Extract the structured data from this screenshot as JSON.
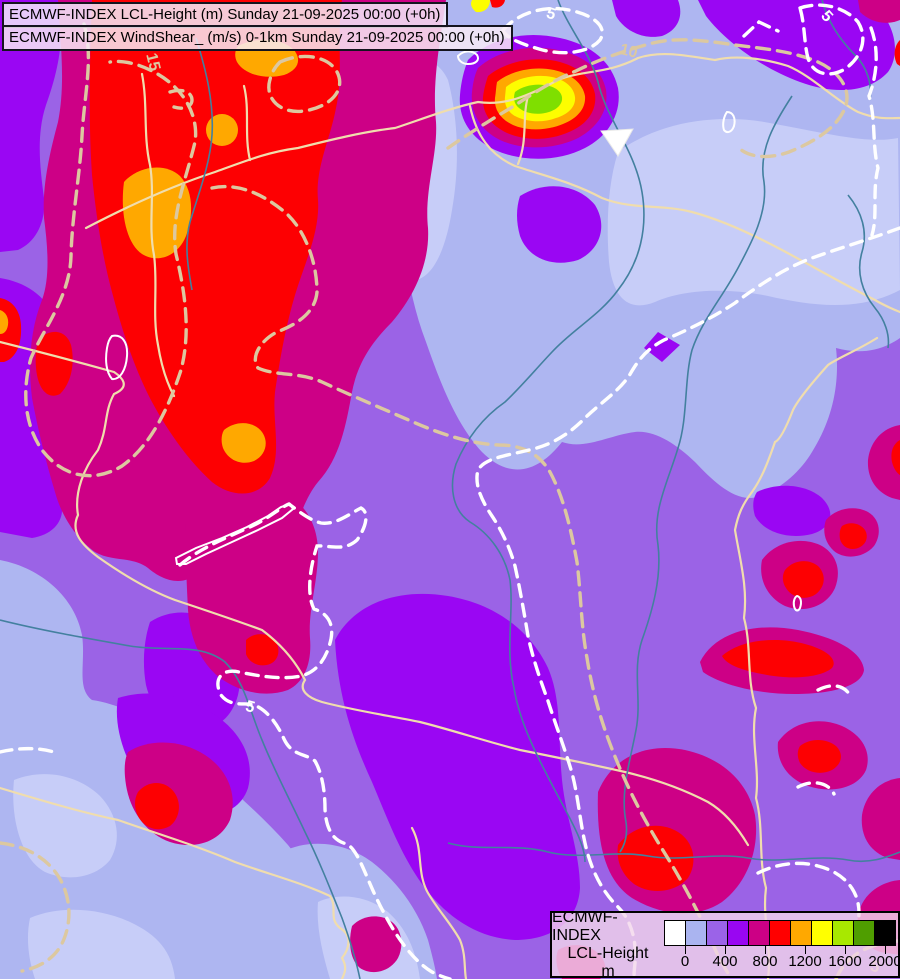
{
  "header": {
    "title_line1": "ECMWF-INDEX LCL-Height (m) Sunday 21-09-2025 00:00 (+0h)",
    "title_line2": "ECMWF-INDEX WindShear_ (m/s) 0-1km Sunday 21-09-2025 00:00 (+0h)"
  },
  "legend": {
    "source_label": "ECMWF-INDEX",
    "variable_label": "LCL-Height",
    "unit_label": "m",
    "tick_labels": [
      "0",
      "400",
      "800",
      "1200",
      "1600",
      "2000"
    ],
    "swatch_colors": [
      "#ffffff",
      "#aab4f0",
      "#9b63e8",
      "#9906f2",
      "#cc0085",
      "#ff0000",
      "#ffa800",
      "#ffff00",
      "#a8e800",
      "#4f9e00",
      "#000000"
    ]
  },
  "map": {
    "contour_labels": [
      {
        "text": "15",
        "color": "cream"
      },
      {
        "text": "10",
        "color": "cream"
      },
      {
        "text": "5",
        "color": "cream"
      },
      {
        "text": "5",
        "color": "white"
      },
      {
        "text": "5",
        "color": "white"
      },
      {
        "text": "5",
        "color": "white"
      }
    ],
    "fill_colors": {
      "periwinkle_light": "#c7cdf8",
      "periwinkle": "#aeb6f1",
      "purple": "#9b63e6",
      "violet": "#9a06f3",
      "magenta": "#cd0086",
      "red": "#fd0002",
      "orange": "#ffa800",
      "yellow": "#fdfd00",
      "green_core": "#7fdf00"
    },
    "line_colors": {
      "country_border": "#f0ddad",
      "river": "#43809f",
      "contour_cream": "#dcc8a0",
      "contour_white": "#ffffff",
      "lake_outline": "#ffffff"
    }
  }
}
